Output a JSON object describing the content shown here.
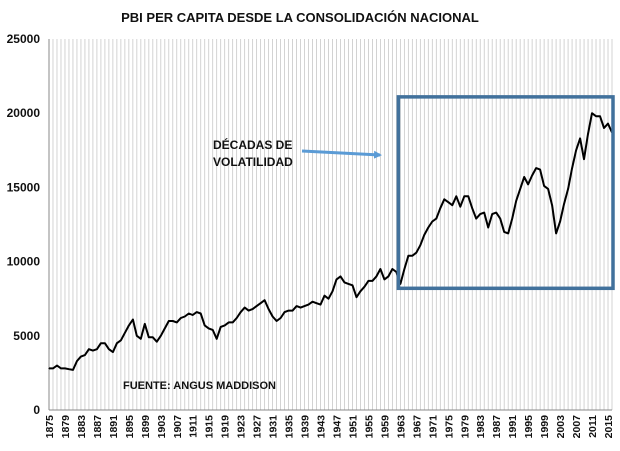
{
  "chart_data": {
    "type": "line",
    "title": "PBI PER CAPITA DESDE LA CONSOLIDACIÓN NACIONAL",
    "xlabel": "",
    "ylabel": "",
    "xlim": [
      1875,
      2016
    ],
    "ylim": [
      0,
      25000
    ],
    "y_ticks": [
      0,
      5000,
      10000,
      15000,
      20000,
      25000
    ],
    "x_tick_labels": [
      "1875",
      "1879",
      "1883",
      "1887",
      "1891",
      "1895",
      "1899",
      "1903",
      "1907",
      "1911",
      "1915",
      "1919",
      "1923",
      "1927",
      "1931",
      "1935",
      "1939",
      "1943",
      "1947",
      "1951",
      "1955",
      "1959",
      "1963",
      "1967",
      "1971",
      "1975",
      "1979",
      "1983",
      "1987",
      "1991",
      "1995",
      "1999",
      "2003",
      "2007",
      "2011",
      "2015"
    ],
    "grid": "vertical",
    "line_color": "#000000",
    "series": [
      {
        "name": "PBI per capita",
        "x": [
          1875,
          1876,
          1877,
          1878,
          1879,
          1880,
          1881,
          1882,
          1883,
          1884,
          1885,
          1886,
          1887,
          1888,
          1889,
          1890,
          1891,
          1892,
          1893,
          1894,
          1895,
          1896,
          1897,
          1898,
          1899,
          1900,
          1901,
          1902,
          1903,
          1904,
          1905,
          1906,
          1907,
          1908,
          1909,
          1910,
          1911,
          1912,
          1913,
          1914,
          1915,
          1916,
          1917,
          1918,
          1919,
          1920,
          1921,
          1922,
          1923,
          1924,
          1925,
          1926,
          1927,
          1928,
          1929,
          1930,
          1931,
          1932,
          1933,
          1934,
          1935,
          1936,
          1937,
          1938,
          1939,
          1940,
          1941,
          1942,
          1943,
          1944,
          1945,
          1946,
          1947,
          1948,
          1949,
          1950,
          1951,
          1952,
          1953,
          1954,
          1955,
          1956,
          1957,
          1958,
          1959,
          1960,
          1961,
          1962,
          1963,
          1964,
          1965,
          1966,
          1967,
          1968,
          1969,
          1970,
          1971,
          1972,
          1973,
          1974,
          1975,
          1976,
          1977,
          1978,
          1979,
          1980,
          1981,
          1982,
          1983,
          1984,
          1985,
          1986,
          1987,
          1988,
          1989,
          1990,
          1991,
          1992,
          1993,
          1994,
          1995,
          1996,
          1997,
          1998,
          1999,
          2000,
          2001,
          2002,
          2003,
          2004,
          2005,
          2006,
          2007,
          2008,
          2009,
          2010,
          2011,
          2012,
          2013,
          2014,
          2015,
          2016
        ],
        "values": [
          2800,
          2800,
          3000,
          2800,
          2800,
          2750,
          2700,
          3300,
          3600,
          3700,
          4100,
          4000,
          4100,
          4500,
          4500,
          4100,
          3900,
          4500,
          4700,
          5200,
          5700,
          6100,
          5000,
          4800,
          5800,
          4900,
          4900,
          4600,
          5000,
          5500,
          6000,
          6000,
          5900,
          6200,
          6300,
          6500,
          6400,
          6600,
          6500,
          5700,
          5500,
          5400,
          4800,
          5600,
          5700,
          5900,
          5900,
          6200,
          6600,
          6900,
          6700,
          6800,
          7000,
          7200,
          7400,
          6800,
          6300,
          6000,
          6200,
          6600,
          6700,
          6700,
          7000,
          6900,
          7000,
          7100,
          7300,
          7200,
          7100,
          7700,
          7500,
          8000,
          8800,
          9000,
          8600,
          8500,
          8400,
          7600,
          8000,
          8300,
          8700,
          8700,
          9000,
          9500,
          8800,
          9000,
          9500,
          9300,
          8500,
          9500,
          10400,
          10400,
          10600,
          11100,
          11800,
          12300,
          12700,
          12900,
          13600,
          14200,
          14000,
          13800,
          14400,
          13700,
          14400,
          14400,
          13600,
          12900,
          13200,
          13300,
          12300,
          13200,
          13300,
          12900,
          12000,
          11900,
          12900,
          14100,
          14900,
          15700,
          15200,
          15800,
          16300,
          16200,
          15100,
          14900,
          13800,
          11900,
          12700,
          13900,
          14900,
          16300,
          17500,
          18300,
          16900,
          18600,
          20000,
          19800,
          19800,
          19000,
          19300,
          18700
        ]
      }
    ],
    "annotations": {
      "box_label_line1": "DÉCADAS DE",
      "box_label_line2": "VOLATILIDAD",
      "box_color": "#41719C",
      "arrow_color": "#5B9BD5",
      "box_x_range": [
        1963,
        2016
      ],
      "box_y_range": [
        8200,
        21100
      ],
      "source": "FUENTE: ANGUS MADDISON"
    }
  }
}
